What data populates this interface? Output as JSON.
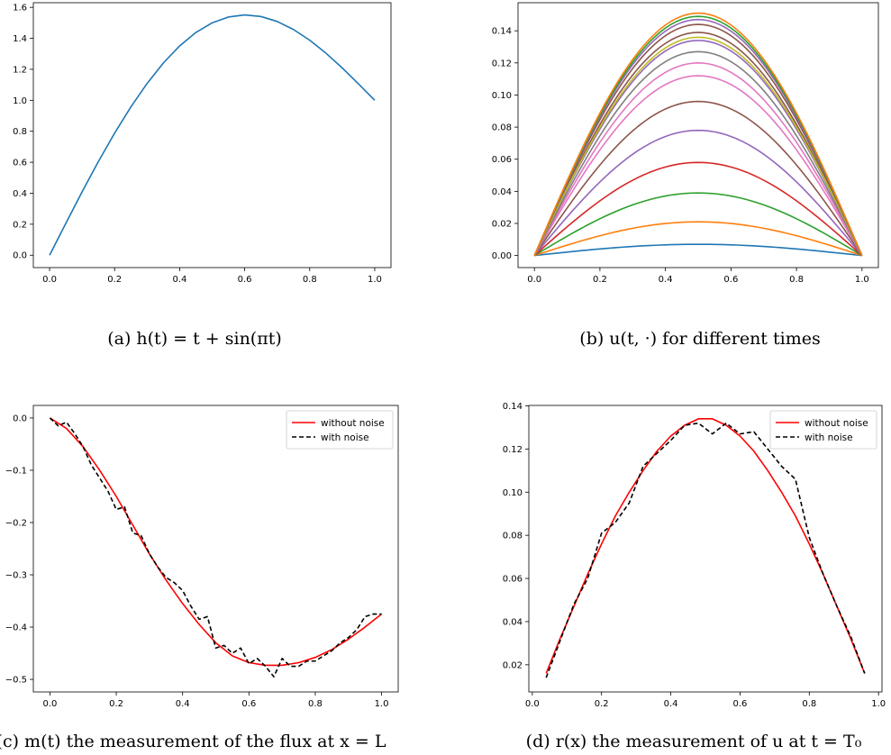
{
  "captions": [
    "(a) h(t) = t + sin(πt)",
    "(b) u(t, ·) for different times",
    "(c) m(t) the measurement of the flux at x = L",
    "(d) r(x) the measurement of u at t = T₀"
  ],
  "chart_data": [
    {
      "type": "line",
      "title": "",
      "xlabel": "",
      "ylabel": "",
      "xlim": [
        -0.05,
        1.05
      ],
      "ylim": [
        -0.08,
        1.63
      ],
      "xticks": [
        0.0,
        0.2,
        0.4,
        0.6,
        0.8,
        1.0
      ],
      "xtick_labels": [
        "0.0",
        "0.2",
        "0.4",
        "0.6",
        "0.8",
        "1.0"
      ],
      "yticks": [
        0.0,
        0.2,
        0.4,
        0.6,
        0.8,
        1.0,
        1.2,
        1.4,
        1.6
      ],
      "ytick_labels": [
        "0.0",
        "0.2",
        "0.4",
        "0.6",
        "0.8",
        "1.0",
        "1.2",
        "1.4",
        "1.6"
      ],
      "grid": false,
      "series": [
        {
          "color": "#1f77b4",
          "x": [
            0.0,
            0.05,
            0.1,
            0.15,
            0.2,
            0.25,
            0.3,
            0.35,
            0.4,
            0.45,
            0.5,
            0.55,
            0.6,
            0.65,
            0.7,
            0.75,
            0.8,
            0.85,
            0.9,
            0.95,
            1.0
          ],
          "y": [
            0.0,
            0.206,
            0.409,
            0.604,
            0.788,
            0.957,
            1.109,
            1.241,
            1.351,
            1.438,
            1.5,
            1.538,
            1.551,
            1.541,
            1.509,
            1.457,
            1.388,
            1.304,
            1.209,
            1.106,
            1.0
          ]
        }
      ]
    },
    {
      "type": "line",
      "title": "",
      "xlabel": "",
      "ylabel": "",
      "xlim": [
        -0.05,
        1.05
      ],
      "ylim": [
        -0.0075,
        0.1575
      ],
      "xticks": [
        0.0,
        0.2,
        0.4,
        0.6,
        0.8,
        1.0
      ],
      "xtick_labels": [
        "0.0",
        "0.2",
        "0.4",
        "0.6",
        "0.8",
        "1.0"
      ],
      "yticks": [
        0.0,
        0.02,
        0.04,
        0.06,
        0.08,
        0.1,
        0.12,
        0.14
      ],
      "ytick_labels": [
        "0.00",
        "0.02",
        "0.04",
        "0.06",
        "0.08",
        "0.10",
        "0.12",
        "0.14"
      ],
      "grid": false,
      "profile": "sin(pi x) scaled by peak",
      "series": [
        {
          "color": "#1f77b4",
          "peak": 0.007
        },
        {
          "color": "#ff7f0e",
          "peak": 0.021
        },
        {
          "color": "#2ca02c",
          "peak": 0.039
        },
        {
          "color": "#d62728",
          "peak": 0.058
        },
        {
          "color": "#9467bd",
          "peak": 0.078
        },
        {
          "color": "#8c564b",
          "peak": 0.096
        },
        {
          "color": "#e377c2",
          "peak": 0.112
        },
        {
          "color": "#e377c2",
          "peak": 0.12
        },
        {
          "color": "#7f7f7f",
          "peak": 0.127
        },
        {
          "color": "#9467bd",
          "peak": 0.134
        },
        {
          "color": "#8c564b",
          "peak": 0.139
        },
        {
          "color": "#bcbd22",
          "peak": 0.136
        },
        {
          "color": "#8c564b",
          "peak": 0.144
        },
        {
          "color": "#9467bd",
          "peak": 0.147
        },
        {
          "color": "#2ca02c",
          "peak": 0.149
        },
        {
          "color": "#ff7f0e",
          "peak": 0.151
        }
      ]
    },
    {
      "type": "line",
      "title": "",
      "xlabel": "",
      "ylabel": "",
      "xlim": [
        -0.05,
        1.05
      ],
      "ylim": [
        -0.524,
        0.024
      ],
      "xticks": [
        0.0,
        0.2,
        0.4,
        0.6,
        0.8,
        1.0
      ],
      "xtick_labels": [
        "0.0",
        "0.2",
        "0.4",
        "0.6",
        "0.8",
        "1.0"
      ],
      "yticks": [
        0.0,
        -0.1,
        -0.2,
        -0.3,
        -0.4,
        -0.5
      ],
      "ytick_labels": [
        "0.0",
        "−0.1",
        "−0.2",
        "−0.3",
        "−0.4",
        "−0.5"
      ],
      "grid": false,
      "legend": {
        "position": "top-right",
        "entries": [
          "without noise",
          "with noise"
        ]
      },
      "series": [
        {
          "name": "without noise",
          "color": "#ff0000",
          "style": "solid",
          "x": [
            0.0,
            0.05,
            0.1,
            0.15,
            0.2,
            0.25,
            0.3,
            0.35,
            0.4,
            0.45,
            0.5,
            0.55,
            0.6,
            0.65,
            0.7,
            0.75,
            0.8,
            0.85,
            0.9,
            0.95,
            1.0
          ],
          "y": [
            0.0,
            -0.02,
            -0.055,
            -0.1,
            -0.15,
            -0.205,
            -0.26,
            -0.31,
            -0.355,
            -0.395,
            -0.43,
            -0.455,
            -0.468,
            -0.473,
            -0.473,
            -0.468,
            -0.458,
            -0.443,
            -0.423,
            -0.4,
            -0.375
          ]
        },
        {
          "name": "with noise",
          "color": "#000000",
          "style": "dashed",
          "x": [
            0.0,
            0.025,
            0.05,
            0.075,
            0.1,
            0.125,
            0.15,
            0.175,
            0.2,
            0.225,
            0.25,
            0.275,
            0.3,
            0.325,
            0.35,
            0.375,
            0.4,
            0.425,
            0.45,
            0.475,
            0.5,
            0.525,
            0.55,
            0.575,
            0.6,
            0.625,
            0.65,
            0.675,
            0.7,
            0.725,
            0.75,
            0.775,
            0.8,
            0.825,
            0.85,
            0.875,
            0.9,
            0.925,
            0.95,
            0.975,
            1.0
          ],
          "y": [
            0.0,
            -0.015,
            -0.008,
            -0.03,
            -0.055,
            -0.09,
            -0.115,
            -0.14,
            -0.175,
            -0.17,
            -0.22,
            -0.225,
            -0.26,
            -0.285,
            -0.305,
            -0.315,
            -0.33,
            -0.36,
            -0.385,
            -0.38,
            -0.44,
            -0.435,
            -0.45,
            -0.44,
            -0.47,
            -0.46,
            -0.475,
            -0.495,
            -0.46,
            -0.475,
            -0.475,
            -0.465,
            -0.465,
            -0.455,
            -0.445,
            -0.43,
            -0.42,
            -0.405,
            -0.38,
            -0.375,
            -0.375
          ]
        }
      ]
    },
    {
      "type": "line",
      "title": "",
      "xlabel": "",
      "ylabel": "",
      "xlim": [
        -0.01,
        1.01
      ],
      "ylim": [
        0.0074,
        0.1402
      ],
      "xticks": [
        0.0,
        0.2,
        0.4,
        0.6,
        0.8,
        1.0
      ],
      "xtick_labels": [
        "0.0",
        "0.2",
        "0.4",
        "0.6",
        "0.8",
        "1.0"
      ],
      "yticks": [
        0.02,
        0.04,
        0.06,
        0.08,
        0.1,
        0.12,
        0.14
      ],
      "ytick_labels": [
        "0.02",
        "0.04",
        "0.06",
        "0.08",
        "0.10",
        "0.12",
        "0.14"
      ],
      "grid": false,
      "legend": {
        "position": "top-right",
        "entries": [
          "without noise",
          "with noise"
        ]
      },
      "series": [
        {
          "name": "without noise",
          "color": "#ff0000",
          "style": "solid",
          "x": [
            0.04,
            0.08,
            0.12,
            0.16,
            0.2,
            0.24,
            0.28,
            0.32,
            0.36,
            0.4,
            0.44,
            0.48,
            0.52,
            0.56,
            0.6,
            0.64,
            0.68,
            0.72,
            0.76,
            0.8,
            0.84,
            0.88,
            0.92,
            0.96
          ],
          "y": [
            0.016,
            0.032,
            0.047,
            0.062,
            0.076,
            0.089,
            0.1,
            0.11,
            0.119,
            0.126,
            0.131,
            0.134,
            0.134,
            0.131,
            0.126,
            0.119,
            0.11,
            0.1,
            0.089,
            0.076,
            0.062,
            0.047,
            0.032,
            0.016
          ]
        },
        {
          "name": "with noise",
          "color": "#000000",
          "style": "dashed",
          "x": [
            0.04,
            0.08,
            0.12,
            0.16,
            0.2,
            0.24,
            0.28,
            0.32,
            0.36,
            0.4,
            0.44,
            0.48,
            0.52,
            0.56,
            0.6,
            0.64,
            0.68,
            0.72,
            0.76,
            0.8,
            0.84,
            0.88,
            0.92,
            0.96
          ],
          "y": [
            0.014,
            0.031,
            0.048,
            0.06,
            0.081,
            0.086,
            0.095,
            0.112,
            0.118,
            0.124,
            0.131,
            0.132,
            0.127,
            0.132,
            0.127,
            0.128,
            0.12,
            0.112,
            0.106,
            0.079,
            0.062,
            0.047,
            0.033,
            0.016
          ]
        }
      ]
    }
  ]
}
